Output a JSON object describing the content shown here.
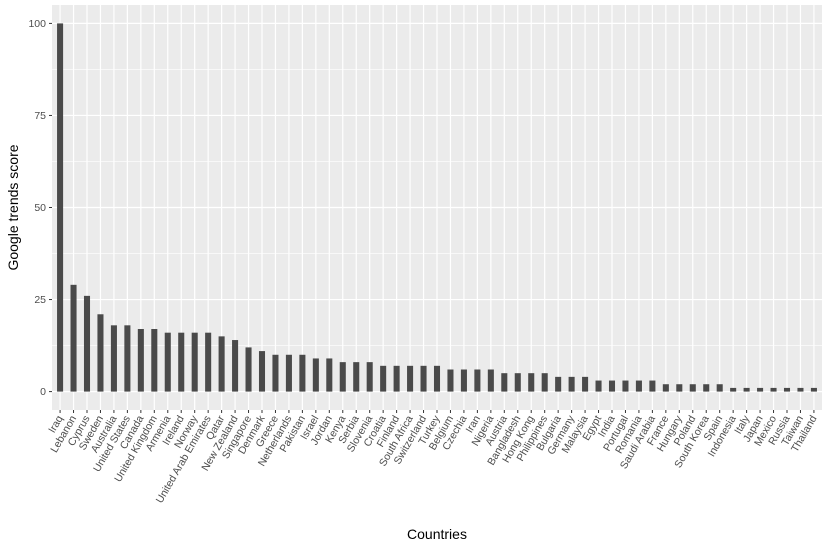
{
  "chart_data": {
    "type": "bar",
    "xlabel": "Countries",
    "ylabel": "Google trends score",
    "ylim": [
      0,
      100
    ],
    "yticks": [
      0,
      25,
      50,
      75,
      100
    ],
    "grid": true,
    "colors": {
      "panel": "#EBEBEB",
      "grid": "#FFFFFF",
      "bar": "#4A4A4A"
    },
    "categories": [
      "Iraq",
      "Lebanon",
      "Cyprus",
      "Sweden",
      "Australia",
      "United States",
      "Canada",
      "United Kingdom",
      "Armenia",
      "Ireland",
      "Norway",
      "United Arab Emirates",
      "Qatar",
      "New Zealand",
      "Singapore",
      "Denmark",
      "Greece",
      "Netherlands",
      "Pakistan",
      "Israel",
      "Jordan",
      "Kenya",
      "Serbia",
      "Slovenia",
      "Croatia",
      "Finland",
      "South Africa",
      "Switzerland",
      "Turkey",
      "Belgium",
      "Czechia",
      "Iran",
      "Nigeria",
      "Austria",
      "Bangladesh",
      "Hong Kong",
      "Philippines",
      "Bulgaria",
      "Germany",
      "Malaysia",
      "Egypt",
      "India",
      "Portugal",
      "Romania",
      "Saudi Arabia",
      "France",
      "Hungary",
      "Poland",
      "South Korea",
      "Spain",
      "Indonesia",
      "Italy",
      "Japan",
      "Mexico",
      "Russia",
      "Taiwan",
      "Thailand"
    ],
    "values": [
      100,
      29,
      26,
      21,
      18,
      18,
      17,
      17,
      16,
      16,
      16,
      16,
      15,
      14,
      12,
      11,
      10,
      10,
      10,
      9,
      9,
      8,
      8,
      8,
      7,
      7,
      7,
      7,
      7,
      6,
      6,
      6,
      6,
      5,
      5,
      5,
      5,
      4,
      4,
      4,
      3,
      3,
      3,
      3,
      3,
      2,
      2,
      2,
      2,
      2,
      1,
      1,
      1,
      1,
      1,
      1,
      1
    ]
  }
}
